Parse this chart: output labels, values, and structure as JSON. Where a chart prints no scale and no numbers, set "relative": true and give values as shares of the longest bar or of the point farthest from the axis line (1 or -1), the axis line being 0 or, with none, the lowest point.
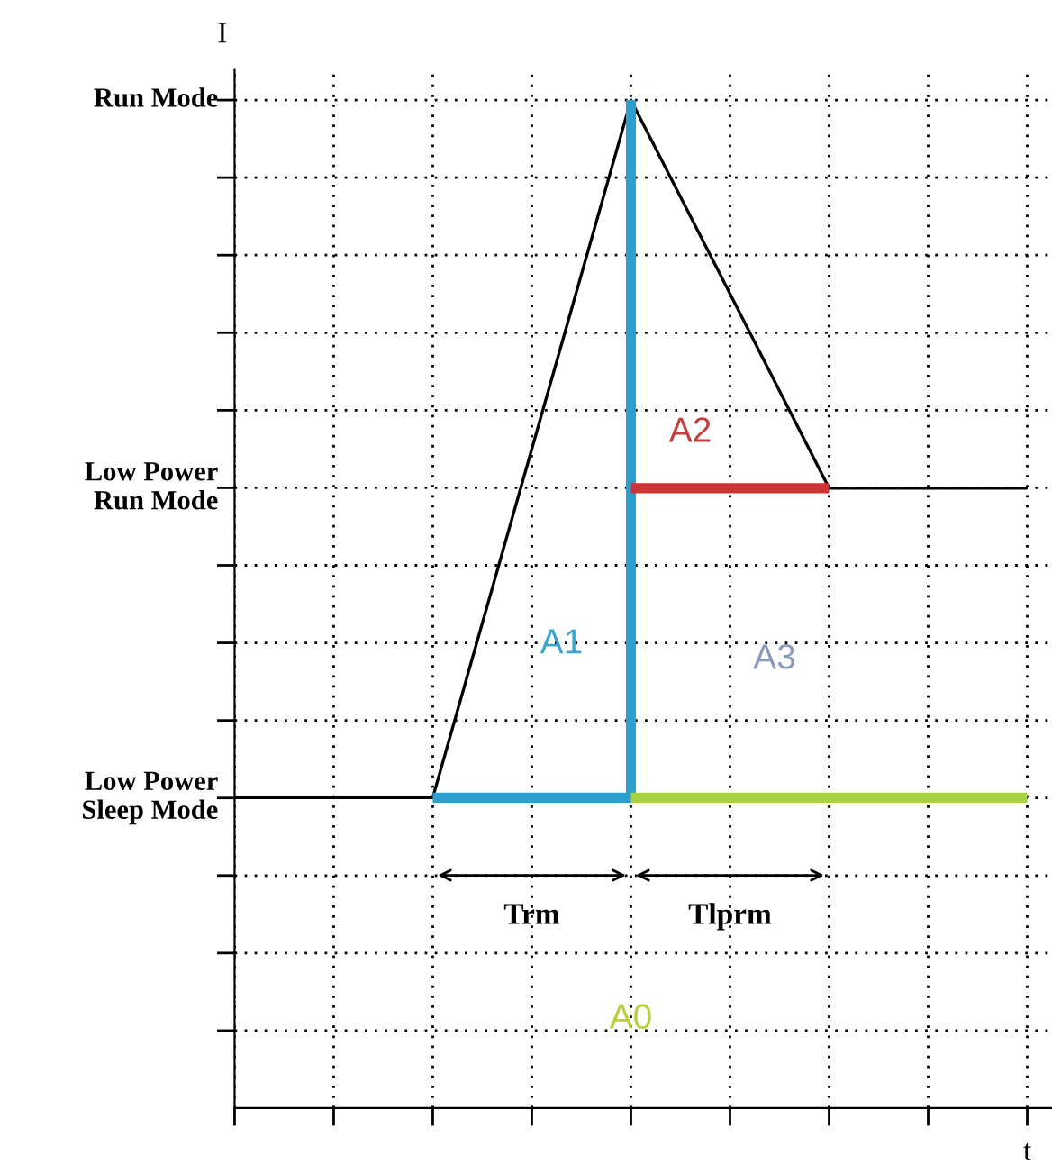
{
  "chart_data": {
    "type": "line",
    "relative": true,
    "xlabel": "t",
    "ylabel": "I",
    "categories": [
      null,
      null,
      null,
      null,
      null,
      null,
      null,
      null,
      null
    ],
    "series": [
      {
        "color": "#000000",
        "values": [
          0.308,
          0.308,
          0.308,
          0.654,
          1,
          0.808,
          0.615,
          0.615,
          0.615
        ]
      },
      {
        "type": "step",
        "color": "#2a9fd0",
        "values": [
          null,
          null,
          0.308,
          0.308,
          1,
          null,
          null,
          null,
          null
        ]
      },
      {
        "type": "line",
        "color": "#cc3333",
        "values": [
          null,
          null,
          null,
          null,
          0.615,
          0.615,
          0.615,
          null,
          null
        ]
      },
      {
        "type": "line",
        "color": "#a8d040",
        "values": [
          null,
          null,
          null,
          null,
          0.308,
          0.308,
          0.308,
          0.308,
          0.308
        ]
      }
    ],
    "annotations": [
      "Run Mode",
      "Low Power\nRun Mode",
      "Low Power\nSleep Mode",
      "Trm",
      "Tlprm",
      "A0",
      "A1",
      "A2",
      "A3"
    ],
    "grid": true,
    "marker": "none",
    "line_style": "solid"
  }
}
